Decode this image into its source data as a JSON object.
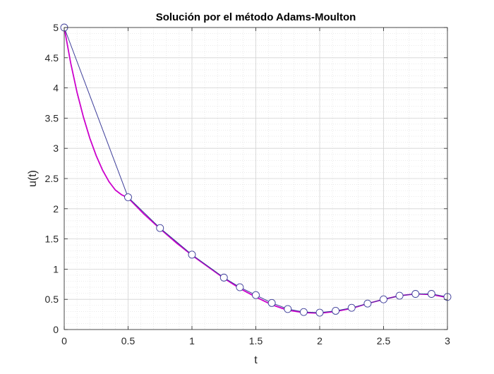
{
  "chart_data": {
    "type": "line",
    "title": "Solución por el método Adams-Moulton",
    "xlabel": "t",
    "ylabel": "u(t)",
    "xlim": [
      0,
      3
    ],
    "ylim": [
      0,
      5
    ],
    "xticks": [
      0,
      0.5,
      1,
      1.5,
      2,
      2.5,
      3
    ],
    "xtick_labels": [
      "0",
      "0.5",
      "1",
      "1.5",
      "2",
      "2.5",
      "3"
    ],
    "yticks": [
      0,
      0.5,
      1,
      1.5,
      2,
      2.5,
      3,
      3.5,
      4,
      4.5,
      5
    ],
    "ytick_labels": [
      "0",
      "0.5",
      "1",
      "1.5",
      "2",
      "2.5",
      "3",
      "3.5",
      "4",
      "4.5",
      "5"
    ],
    "grid": true,
    "minor_grid": true,
    "series": [
      {
        "style": "smooth-line",
        "color": "#cc00cc",
        "x": [
          0,
          0.05,
          0.1,
          0.15,
          0.2,
          0.25,
          0.3,
          0.35,
          0.4,
          0.45,
          0.5,
          0.625,
          0.75,
          0.875,
          1.0,
          1.125,
          1.25,
          1.375,
          1.5,
          1.625,
          1.75,
          1.875,
          2.0,
          2.125,
          2.25,
          2.375,
          2.5,
          2.625,
          2.75,
          2.875,
          3.0
        ],
        "y": [
          5.0,
          4.42,
          3.93,
          3.52,
          3.17,
          2.88,
          2.64,
          2.45,
          2.31,
          2.23,
          2.18,
          1.91,
          1.67,
          1.44,
          1.23,
          1.04,
          0.85,
          0.68,
          0.54,
          0.41,
          0.32,
          0.28,
          0.27,
          0.3,
          0.35,
          0.43,
          0.5,
          0.56,
          0.59,
          0.58,
          0.53
        ]
      },
      {
        "style": "line-markers",
        "color": "#3d3d99",
        "marker": "circle",
        "x": [
          0,
          0.5,
          0.75,
          1.0,
          1.25,
          1.375,
          1.5,
          1.625,
          1.75,
          1.875,
          2.0,
          2.125,
          2.25,
          2.375,
          2.5,
          2.625,
          2.75,
          2.875,
          3.0
        ],
        "y": [
          5.0,
          2.19,
          1.68,
          1.24,
          0.86,
          0.7,
          0.57,
          0.44,
          0.34,
          0.29,
          0.28,
          0.31,
          0.36,
          0.43,
          0.5,
          0.56,
          0.59,
          0.59,
          0.54
        ]
      }
    ]
  }
}
